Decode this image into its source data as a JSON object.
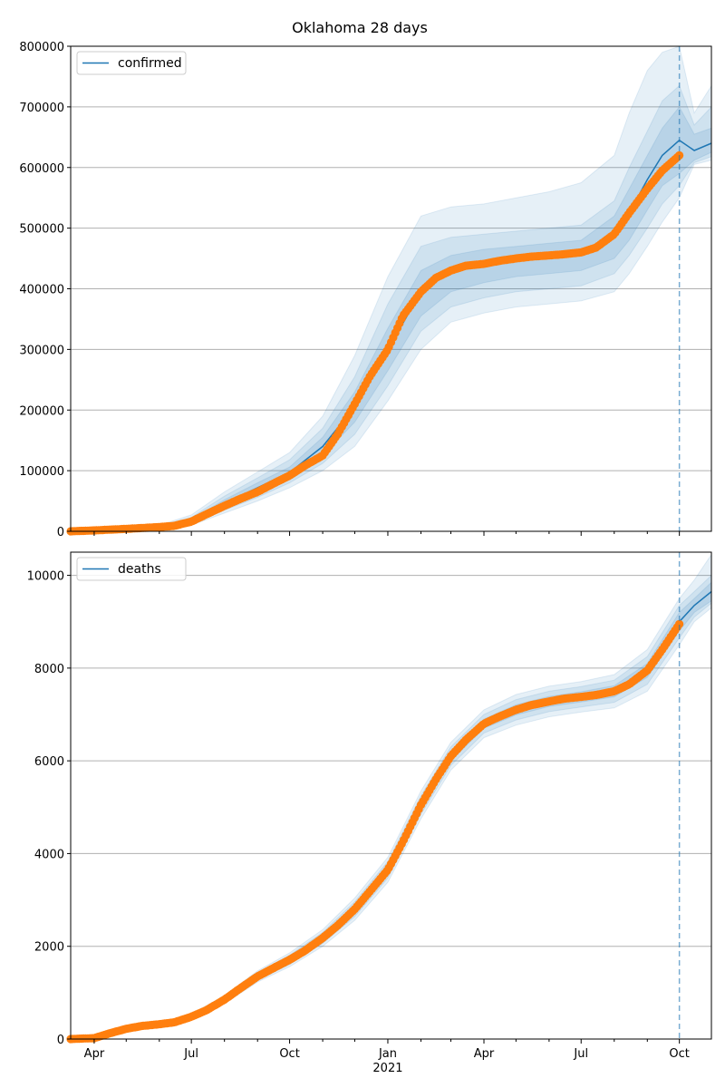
{
  "title": "Oklahoma 28 days",
  "x_ticks": [
    {
      "date": "2020-04-01",
      "label": "Apr"
    },
    {
      "date": "2020-07-01",
      "label": "Jul"
    },
    {
      "date": "2020-10-01",
      "label": "Oct"
    },
    {
      "date": "2021-01-01",
      "label": "Jan"
    },
    {
      "date": "2021-04-01",
      "label": "Apr"
    },
    {
      "date": "2021-07-01",
      "label": "Jul"
    },
    {
      "date": "2021-10-01",
      "label": "Oct"
    }
  ],
  "x_year_label": {
    "date": "2021-01-01",
    "label": "2021"
  },
  "colors": {
    "model": "#1f77b4",
    "observed": "#ff7f0e",
    "band": "#1f77b4",
    "grid": "#b0b0b0",
    "forecast_line": "#1f77b4"
  },
  "chart_data": [
    {
      "type": "line",
      "panel": "top",
      "legend": {
        "label": "confirmed",
        "placement": "top-left"
      },
      "xlim": [
        "2020-03-10",
        "2021-10-31"
      ],
      "ylim": [
        0,
        800000
      ],
      "yticks": [
        0,
        100000,
        200000,
        300000,
        400000,
        500000,
        600000,
        700000,
        800000
      ],
      "ytick_labels": [
        "0",
        "100000",
        "200000",
        "300000",
        "400000",
        "500000",
        "600000",
        "700000",
        "800000"
      ],
      "grid": "y",
      "forecast_start": "2021-10-01",
      "observed": {
        "x": [
          "2020-03-10",
          "2020-04-01",
          "2020-05-01",
          "2020-06-01",
          "2020-06-15",
          "2020-07-01",
          "2020-07-15",
          "2020-08-01",
          "2020-08-15",
          "2020-09-01",
          "2020-09-15",
          "2020-10-01",
          "2020-10-15",
          "2020-11-01",
          "2020-11-15",
          "2020-12-01",
          "2020-12-15",
          "2021-01-01",
          "2021-01-15",
          "2021-02-01",
          "2021-02-15",
          "2021-03-01",
          "2021-03-15",
          "2021-04-01",
          "2021-04-15",
          "2021-05-01",
          "2021-05-15",
          "2021-06-01",
          "2021-06-15",
          "2021-07-01",
          "2021-07-15",
          "2021-08-01",
          "2021-08-15",
          "2021-09-01",
          "2021-09-15",
          "2021-10-01"
        ],
        "y": [
          0,
          1500,
          4000,
          7000,
          9000,
          16000,
          28000,
          42000,
          53000,
          65000,
          78000,
          92000,
          108000,
          125000,
          160000,
          210000,
          255000,
          300000,
          355000,
          395000,
          418000,
          430000,
          438000,
          441000,
          446000,
          450000,
          453000,
          455000,
          457000,
          460000,
          468000,
          490000,
          525000,
          565000,
          595000,
          620000
        ]
      },
      "model": {
        "x": [
          "2020-03-10",
          "2020-04-01",
          "2020-05-01",
          "2020-06-01",
          "2020-07-01",
          "2020-08-01",
          "2020-09-01",
          "2020-10-01",
          "2020-11-01",
          "2020-12-01",
          "2021-01-01",
          "2021-02-01",
          "2021-03-01",
          "2021-04-01",
          "2021-05-01",
          "2021-06-01",
          "2021-07-01",
          "2021-08-01",
          "2021-08-15",
          "2021-09-01",
          "2021-09-15",
          "2021-10-01",
          "2021-10-15",
          "2021-10-31"
        ],
        "y": [
          0,
          1500,
          4000,
          7000,
          17000,
          46000,
          72000,
          97000,
          140000,
          205000,
          300000,
          395000,
          430000,
          441000,
          450000,
          455000,
          460000,
          490000,
          525000,
          580000,
          620000,
          645000,
          628000,
          640000
        ],
        "band_inner": {
          "lower": [
            0,
            1500,
            3500,
            6000,
            14000,
            40000,
            64000,
            88000,
            125000,
            180000,
            265000,
            355000,
            395000,
            410000,
            420000,
            425000,
            430000,
            450000,
            480000,
            530000,
            570000,
            590000,
            612000,
            625000
          ],
          "upper": [
            0,
            1500,
            4500,
            8000,
            20000,
            52000,
            80000,
            106000,
            155000,
            230000,
            335000,
            430000,
            455000,
            465000,
            470000,
            475000,
            480000,
            520000,
            565000,
            620000,
            665000,
            700000,
            655000,
            665000
          ]
        },
        "band_mid": {
          "lower": [
            0,
            1400,
            3000,
            5000,
            12000,
            35000,
            56000,
            80000,
            112000,
            160000,
            240000,
            330000,
            370000,
            385000,
            395000,
            400000,
            405000,
            425000,
            455000,
            500000,
            540000,
            570000,
            608000,
            618000
          ],
          "upper": [
            0,
            1600,
            5000,
            9000,
            23000,
            58000,
            88000,
            118000,
            170000,
            255000,
            375000,
            470000,
            485000,
            490000,
            495000,
            500000,
            505000,
            545000,
            600000,
            660000,
            710000,
            735000,
            670000,
            700000
          ]
        },
        "band_outer": {
          "lower": [
            0,
            1300,
            2500,
            4500,
            10000,
            30000,
            50000,
            72000,
            100000,
            140000,
            215000,
            300000,
            345000,
            360000,
            370000,
            375000,
            380000,
            395000,
            425000,
            470000,
            510000,
            550000,
            605000,
            612000
          ],
          "upper": [
            0,
            1700,
            5500,
            10000,
            27000,
            65000,
            98000,
            130000,
            190000,
            290000,
            420000,
            520000,
            535000,
            540000,
            550000,
            560000,
            575000,
            620000,
            690000,
            760000,
            790000,
            800000,
            690000,
            735000
          ]
        }
      }
    },
    {
      "type": "line",
      "panel": "bottom",
      "legend": {
        "label": "deaths",
        "placement": "top-left"
      },
      "xlim": [
        "2020-03-10",
        "2021-10-31"
      ],
      "ylim": [
        0,
        10500
      ],
      "yticks": [
        0,
        2000,
        4000,
        6000,
        8000,
        10000
      ],
      "ytick_labels": [
        "0",
        "2000",
        "4000",
        "6000",
        "8000",
        "10000"
      ],
      "grid": "y",
      "forecast_start": "2021-10-01",
      "observed": {
        "x": [
          "2020-03-10",
          "2020-04-01",
          "2020-04-15",
          "2020-05-01",
          "2020-05-15",
          "2020-06-01",
          "2020-06-15",
          "2020-07-01",
          "2020-07-15",
          "2020-08-01",
          "2020-08-15",
          "2020-09-01",
          "2020-09-15",
          "2020-10-01",
          "2020-10-15",
          "2020-11-01",
          "2020-11-15",
          "2020-12-01",
          "2020-12-15",
          "2021-01-01",
          "2021-01-15",
          "2021-02-01",
          "2021-02-15",
          "2021-03-01",
          "2021-03-15",
          "2021-04-01",
          "2021-04-15",
          "2021-05-01",
          "2021-05-15",
          "2021-06-01",
          "2021-06-15",
          "2021-07-01",
          "2021-07-15",
          "2021-08-01",
          "2021-08-15",
          "2021-09-01",
          "2021-09-15",
          "2021-10-01"
        ],
        "y": [
          0,
          20,
          120,
          220,
          280,
          320,
          360,
          480,
          620,
          850,
          1080,
          1350,
          1520,
          1710,
          1900,
          2180,
          2450,
          2800,
          3180,
          3650,
          4250,
          5050,
          5600,
          6100,
          6450,
          6800,
          6950,
          7100,
          7200,
          7280,
          7340,
          7380,
          7420,
          7500,
          7650,
          7950,
          8400,
          8950
        ]
      },
      "model": {
        "x": [
          "2020-03-10",
          "2020-04-01",
          "2020-05-01",
          "2020-06-01",
          "2020-07-01",
          "2020-08-01",
          "2020-09-01",
          "2020-10-01",
          "2020-11-01",
          "2020-12-01",
          "2021-01-01",
          "2021-02-01",
          "2021-03-01",
          "2021-04-01",
          "2021-05-01",
          "2021-06-01",
          "2021-07-01",
          "2021-08-01",
          "2021-09-01",
          "2021-10-01",
          "2021-10-15",
          "2021-10-31"
        ],
        "y": [
          0,
          20,
          220,
          320,
          480,
          850,
          1350,
          1710,
          2180,
          2800,
          3650,
          5050,
          6100,
          6800,
          7100,
          7280,
          7380,
          7500,
          7950,
          9000,
          9350,
          9650
        ],
        "band_inner": {
          "lower": [
            0,
            20,
            210,
            310,
            460,
            820,
            1310,
            1660,
            2120,
            2720,
            3560,
            4950,
            6000,
            6700,
            6990,
            7170,
            7270,
            7380,
            7800,
            8800,
            9200,
            9450
          ],
          "upper": [
            0,
            20,
            230,
            330,
            500,
            880,
            1390,
            1760,
            2240,
            2880,
            3740,
            5150,
            6200,
            6900,
            7210,
            7390,
            7490,
            7620,
            8100,
            9200,
            9500,
            9850
          ]
        },
        "band_mid": {
          "lower": [
            0,
            20,
            200,
            300,
            440,
            790,
            1270,
            1610,
            2060,
            2640,
            3470,
            4850,
            5900,
            6600,
            6880,
            7060,
            7160,
            7260,
            7650,
            8650,
            9100,
            9400
          ],
          "upper": [
            0,
            20,
            240,
            340,
            520,
            910,
            1430,
            1810,
            2300,
            2960,
            3830,
            5250,
            6300,
            7000,
            7320,
            7500,
            7600,
            7740,
            8250,
            9350,
            9650,
            10000
          ]
        },
        "band_outer": {
          "lower": [
            0,
            20,
            190,
            290,
            420,
            760,
            1230,
            1560,
            2000,
            2560,
            3380,
            4750,
            5800,
            6500,
            6770,
            6950,
            7050,
            7140,
            7500,
            8500,
            9000,
            9300
          ],
          "upper": [
            0,
            20,
            250,
            350,
            540,
            940,
            1470,
            1860,
            2360,
            3040,
            3920,
            5350,
            6400,
            7100,
            7430,
            7610,
            7710,
            7860,
            8400,
            9500,
            9900,
            10450
          ]
        }
      }
    }
  ]
}
